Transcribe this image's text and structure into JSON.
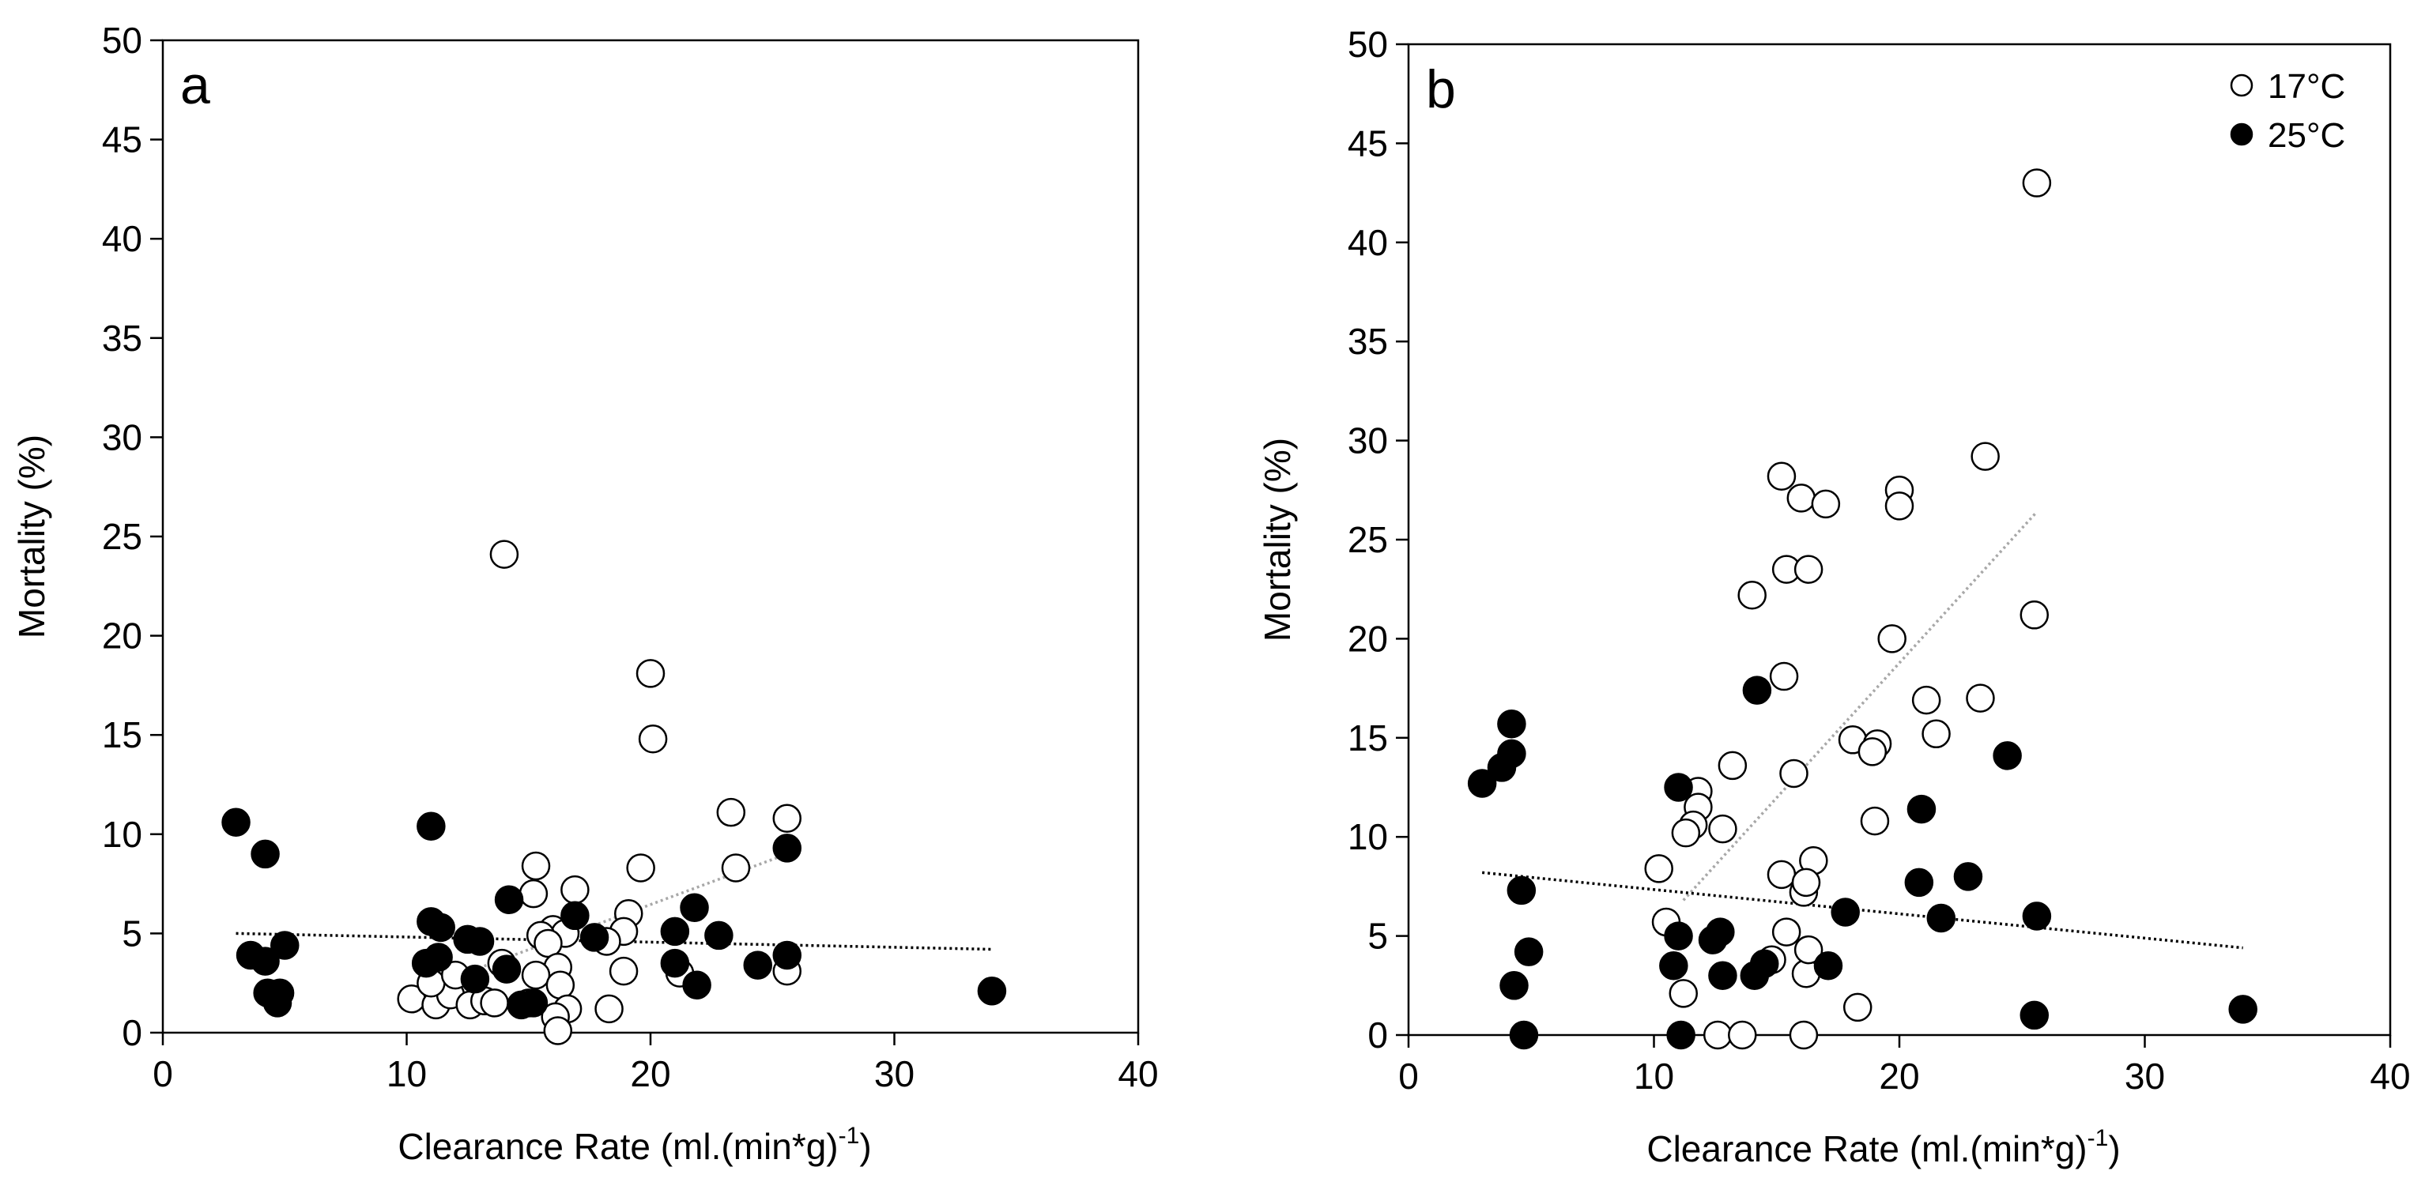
{
  "chart_data": [
    {
      "type": "scatter",
      "panel_label": "a",
      "xlabel_main": "Clearance  Rate (ml.(min*g)",
      "xlabel_sup": "-1",
      "xlabel_end": ")",
      "ylabel": "Mortality (%)",
      "xlim": [
        0,
        40
      ],
      "ylim": [
        0,
        50
      ],
      "x_ticks": [
        "0",
        "10",
        "20",
        "30",
        "40"
      ],
      "y_ticks": [
        "0",
        "5",
        "10",
        "15",
        "20",
        "25",
        "30",
        "35",
        "40",
        "45",
        "50"
      ],
      "series": [
        {
          "name": "17°C",
          "fill": "#ffffff",
          "points": [
            [
              14.0,
              24.1
            ],
            [
              20.0,
              18.1
            ],
            [
              20.1,
              14.8
            ],
            [
              23.3,
              11.1
            ],
            [
              25.6,
              10.8
            ],
            [
              23.5,
              8.3
            ],
            [
              19.6,
              8.3
            ],
            [
              15.3,
              8.4
            ],
            [
              16.9,
              7.2
            ],
            [
              15.2,
              7.0
            ],
            [
              19.1,
              6.0
            ],
            [
              16.0,
              5.2
            ],
            [
              16.5,
              5.0
            ],
            [
              15.5,
              4.9
            ],
            [
              18.9,
              5.1
            ],
            [
              15.8,
              4.5
            ],
            [
              18.2,
              4.6
            ],
            [
              18.9,
              3.1
            ],
            [
              16.2,
              3.3
            ],
            [
              15.3,
              2.9
            ],
            [
              16.3,
              2.4
            ],
            [
              10.2,
              1.7
            ],
            [
              11.2,
              1.4
            ],
            [
              11.8,
              1.9
            ],
            [
              12.6,
              1.4
            ],
            [
              13.2,
              1.6
            ],
            [
              13.6,
              1.5
            ],
            [
              15.0,
              1.5
            ],
            [
              16.6,
              1.2
            ],
            [
              16.1,
              0.8
            ],
            [
              18.3,
              1.2
            ],
            [
              16.2,
              0.1
            ],
            [
              25.6,
              3.1
            ],
            [
              13.9,
              3.5
            ],
            [
              11.0,
              2.5
            ],
            [
              12.0,
              2.9
            ],
            [
              21.2,
              3.0
            ]
          ],
          "trend": [
            [
              10.2,
              2.0
            ],
            [
              25.6,
              9.0
            ]
          ],
          "trend_color": "#a8a8a8"
        },
        {
          "name": "25°C",
          "fill": "#000000",
          "points": [
            [
              3.0,
              10.6
            ],
            [
              4.2,
              9.0
            ],
            [
              3.6,
              3.9
            ],
            [
              4.2,
              3.6
            ],
            [
              5.0,
              4.4
            ],
            [
              4.3,
              2.0
            ],
            [
              4.8,
              2.0
            ],
            [
              4.7,
              1.5
            ],
            [
              11.0,
              10.4
            ],
            [
              11.0,
              5.6
            ],
            [
              11.4,
              5.3
            ],
            [
              10.8,
              3.5
            ],
            [
              11.3,
              3.8
            ],
            [
              12.5,
              4.7
            ],
            [
              13.0,
              4.6
            ],
            [
              12.8,
              2.7
            ],
            [
              14.2,
              6.7
            ],
            [
              14.1,
              3.2
            ],
            [
              14.7,
              1.4
            ],
            [
              15.2,
              1.5
            ],
            [
              16.9,
              5.9
            ],
            [
              17.7,
              4.8
            ],
            [
              21.0,
              5.1
            ],
            [
              21.8,
              6.3
            ],
            [
              22.8,
              4.9
            ],
            [
              21.0,
              3.5
            ],
            [
              21.9,
              2.4
            ],
            [
              24.4,
              3.4
            ],
            [
              25.6,
              3.9
            ],
            [
              25.6,
              9.3
            ],
            [
              34.0,
              2.1
            ]
          ],
          "trend": [
            [
              3.0,
              5.0
            ],
            [
              34.0,
              4.2
            ]
          ],
          "trend_color": "#000000"
        }
      ]
    },
    {
      "type": "scatter",
      "panel_label": "b",
      "xlabel_main": "Clearance  Rate (ml.(min*g)",
      "xlabel_sup": "-1",
      "xlabel_end": ")",
      "ylabel": "Mortality (%)",
      "xlim": [
        0,
        40
      ],
      "ylim": [
        0,
        50
      ],
      "x_ticks": [
        "0",
        "10",
        "20",
        "30",
        "40"
      ],
      "y_ticks": [
        "0",
        "5",
        "10",
        "15",
        "20",
        "25",
        "30",
        "35",
        "40",
        "45",
        "50"
      ],
      "legend_position": "top-right",
      "legend": [
        {
          "label": "17°C",
          "fill": "#ffffff"
        },
        {
          "label": "25°C",
          "fill": "#000000"
        }
      ],
      "series": [
        {
          "name": "17°C",
          "fill": "#ffffff",
          "points": [
            [
              25.6,
              43.0
            ],
            [
              23.5,
              29.2
            ],
            [
              15.2,
              28.2
            ],
            [
              16.0,
              27.1
            ],
            [
              17.0,
              26.8
            ],
            [
              20.0,
              27.5
            ],
            [
              20.0,
              26.7
            ],
            [
              15.4,
              23.5
            ],
            [
              16.3,
              23.5
            ],
            [
              14.0,
              22.2
            ],
            [
              25.5,
              21.2
            ],
            [
              19.7,
              20.0
            ],
            [
              15.3,
              18.1
            ],
            [
              21.1,
              16.9
            ],
            [
              23.3,
              17.0
            ],
            [
              21.5,
              15.2
            ],
            [
              18.1,
              14.9
            ],
            [
              19.1,
              14.7
            ],
            [
              18.9,
              14.3
            ],
            [
              13.2,
              13.6
            ],
            [
              15.7,
              13.2
            ],
            [
              11.8,
              12.3
            ],
            [
              11.8,
              11.5
            ],
            [
              11.6,
              10.6
            ],
            [
              11.3,
              10.2
            ],
            [
              12.8,
              10.4
            ],
            [
              10.2,
              8.4
            ],
            [
              19.0,
              10.8
            ],
            [
              16.5,
              8.8
            ],
            [
              15.2,
              8.1
            ],
            [
              16.1,
              7.2
            ],
            [
              16.2,
              7.7
            ],
            [
              10.5,
              5.7
            ],
            [
              15.4,
              5.2
            ],
            [
              14.8,
              3.8
            ],
            [
              16.2,
              3.1
            ],
            [
              16.3,
              4.3
            ],
            [
              11.2,
              2.1
            ],
            [
              18.3,
              1.4
            ],
            [
              12.6,
              0.0
            ],
            [
              13.6,
              0.0
            ],
            [
              16.1,
              0.0
            ]
          ],
          "trend": [
            [
              11.2,
              6.8
            ],
            [
              25.6,
              26.4
            ]
          ],
          "trend_color": "#a8a8a8"
        },
        {
          "name": "25°C",
          "fill": "#000000",
          "points": [
            [
              3.0,
              12.7
            ],
            [
              3.8,
              13.5
            ],
            [
              4.2,
              14.2
            ],
            [
              4.2,
              15.7
            ],
            [
              4.6,
              7.3
            ],
            [
              4.9,
              4.2
            ],
            [
              4.3,
              2.5
            ],
            [
              4.7,
              0.0
            ],
            [
              14.2,
              17.4
            ],
            [
              11.0,
              12.5
            ],
            [
              10.8,
              3.5
            ],
            [
              11.0,
              5.0
            ],
            [
              12.4,
              4.8
            ],
            [
              12.7,
              5.2
            ],
            [
              12.8,
              3.0
            ],
            [
              14.1,
              3.0
            ],
            [
              14.5,
              3.6
            ],
            [
              17.1,
              3.5
            ],
            [
              17.8,
              6.2
            ],
            [
              20.9,
              11.4
            ],
            [
              20.8,
              7.7
            ],
            [
              21.7,
              5.9
            ],
            [
              22.8,
              8.0
            ],
            [
              24.4,
              14.1
            ],
            [
              25.6,
              6.0
            ],
            [
              25.5,
              1.0
            ],
            [
              11.1,
              0.0
            ],
            [
              34.0,
              1.3
            ]
          ],
          "trend": [
            [
              3.0,
              8.2
            ],
            [
              34.0,
              4.4
            ]
          ],
          "trend_color": "#000000"
        }
      ]
    }
  ]
}
